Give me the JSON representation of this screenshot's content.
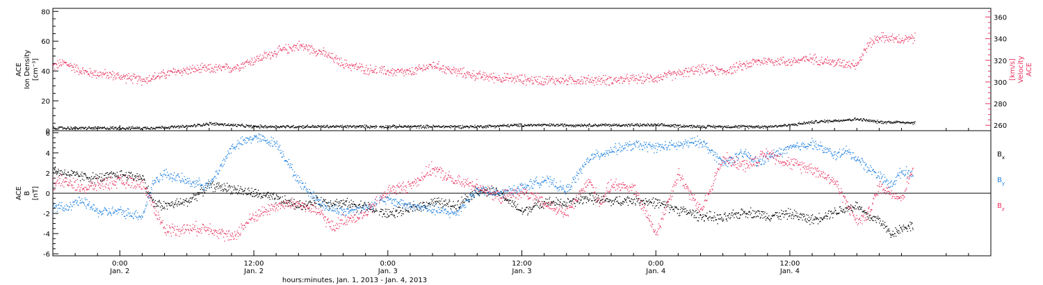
{
  "colors": {
    "density": "#000000",
    "velocity": "#e8325f",
    "bx": "#000000",
    "by": "#1a7fe0",
    "bz": "#e8325f",
    "axis": "#000000"
  },
  "chart_data": [
    {
      "type": "scatter",
      "panel": "top",
      "ylabel_left": [
        "ACE",
        "Ion Density",
        "[cm⁻³]"
      ],
      "ylabel_right": [
        "ACE",
        "Velocity",
        "[km/s]"
      ],
      "ylim": [
        0,
        82
      ],
      "yticks": [
        "0",
        "20",
        "40",
        "60",
        "80"
      ],
      "ylim_right": [
        255,
        368
      ],
      "yticks_right": [
        "260",
        "280",
        "300",
        "320",
        "340",
        "360"
      ],
      "x_unit": "hours since Jan. 1, 2013 18:00",
      "xlim": [
        0,
        84
      ],
      "series": [
        {
          "name": "Ion Density",
          "axis": "left",
          "color": "#000000",
          "x": [
            0,
            4,
            8,
            12,
            14,
            18,
            22,
            26,
            30,
            34,
            38,
            42,
            46,
            50,
            54,
            58,
            62,
            64,
            66,
            68,
            70,
            72,
            74,
            76,
            78,
            80,
            84
          ],
          "y": [
            2,
            2,
            2,
            3,
            5,
            3,
            3,
            3,
            3,
            3,
            3,
            4,
            4,
            4,
            4,
            3,
            3,
            3,
            4,
            6,
            7,
            8,
            6,
            6,
            5,
            5,
            4
          ]
        },
        {
          "name": "Velocity",
          "axis": "right",
          "color": "#e8325f",
          "x": [
            0,
            1,
            2,
            3,
            5,
            8,
            11,
            13,
            16,
            20,
            22,
            24,
            26,
            28,
            30,
            32,
            34,
            36,
            38,
            40,
            43,
            46,
            50,
            54,
            56,
            58,
            60,
            62,
            63,
            64,
            66,
            68,
            70,
            72,
            73,
            74,
            76,
            78,
            80,
            82,
            84
          ],
          "y": [
            315,
            318,
            313,
            309,
            307,
            302,
            310,
            312,
            313,
            328,
            334,
            328,
            317,
            312,
            310,
            309,
            316,
            310,
            306,
            304,
            302,
            302,
            302,
            304,
            308,
            312,
            310,
            316,
            319,
            320,
            319,
            322,
            318,
            317,
            335,
            342,
            339,
            342,
            343,
            344,
            340
          ]
        }
      ]
    },
    {
      "type": "scatter",
      "panel": "bottom",
      "ylabel": [
        "ACE",
        "B",
        "[nT]"
      ],
      "ylim": [
        -6.2,
        6.2
      ],
      "yticks": [
        "-6",
        "-4",
        "-2",
        "0",
        "2",
        "4",
        "6"
      ],
      "zero_line": true,
      "xlabel": "hours:minutes, Jan.  1, 2013 - Jan.  4, 2013",
      "xticks": [
        {
          "x": 6,
          "time": "0:00",
          "date": "Jan. 2"
        },
        {
          "x": 18,
          "time": "12:00",
          "date": "Jan. 2"
        },
        {
          "x": 30,
          "time": "0:00",
          "date": "Jan. 3"
        },
        {
          "x": 42,
          "time": "12:00",
          "date": "Jan. 3"
        },
        {
          "x": 54,
          "time": "0:00",
          "date": "Jan. 4"
        },
        {
          "x": 66,
          "time": "12:00",
          "date": "Jan. 4"
        }
      ],
      "legend": {
        "placement": "right",
        "items": [
          {
            "main": "B",
            "sub": "x",
            "color": "#000000"
          },
          {
            "main": "B",
            "sub": "y",
            "color": "#1a7fe0"
          },
          {
            "main": "B",
            "sub": "z",
            "color": "#e8325f"
          }
        ]
      },
      "xlim": [
        0,
        84
      ],
      "series": [
        {
          "name": "Bx",
          "color": "#000000",
          "x": [
            0,
            2,
            4,
            6,
            8,
            9,
            10,
            12,
            14,
            16,
            18,
            20,
            22,
            24,
            26,
            28,
            29,
            30,
            32,
            34,
            36,
            38,
            40,
            42,
            44,
            46,
            48,
            50,
            52,
            54,
            56,
            58,
            60,
            62,
            64,
            66,
            68,
            70,
            72,
            73,
            74,
            75,
            76,
            77
          ],
          "y": [
            2.3,
            1.8,
            1.5,
            1.9,
            1.6,
            -1,
            -1.2,
            -0.8,
            0.8,
            0.5,
            0,
            -0.5,
            -1.2,
            -0.8,
            -1,
            -1.2,
            -1.8,
            -2,
            -1.5,
            -0.8,
            -1.2,
            0.3,
            0,
            -1.8,
            -0.8,
            -1,
            -0.4,
            -0.8,
            -0.6,
            -0.9,
            -1.6,
            -2.2,
            -2.5,
            -1.8,
            -2.2,
            -2.0,
            -2.6,
            -1.8,
            -1.2,
            -2.3,
            -2.6,
            -4,
            -3.4,
            -3.2
          ]
        },
        {
          "name": "By",
          "color": "#1a7fe0",
          "x": [
            0,
            1,
            2,
            3,
            4,
            6,
            8,
            9,
            10,
            12,
            14,
            16,
            18,
            20,
            22,
            24,
            25,
            26,
            28,
            29,
            30,
            32,
            34,
            36,
            38,
            40,
            42,
            44,
            46,
            48,
            50,
            52,
            54,
            56,
            58,
            60,
            62,
            63,
            64,
            66,
            68,
            70,
            71,
            72,
            73,
            74,
            75,
            76,
            77
          ],
          "y": [
            -1.2,
            -1.5,
            -0.8,
            -1,
            -1.8,
            -1.8,
            -2.2,
            1.2,
            2.0,
            1.2,
            0.8,
            4.6,
            5.6,
            5.0,
            1.2,
            -1.0,
            -1.5,
            -1.8,
            -1.4,
            -0.8,
            -0.6,
            -1.2,
            -1.6,
            -2.0,
            0.4,
            0,
            0.6,
            1.4,
            0.3,
            3.5,
            4.3,
            4.8,
            4.6,
            4.8,
            5.2,
            3.0,
            4.0,
            3.0,
            3.6,
            4.5,
            5.0,
            3.8,
            4.2,
            3.5,
            2.5,
            1.8,
            0.8,
            2.2,
            2.0
          ]
        },
        {
          "name": "Bz",
          "color": "#e8325f",
          "x": [
            0,
            1,
            2,
            3,
            4,
            6,
            8,
            10,
            12,
            14,
            16,
            18,
            20,
            22,
            24,
            25,
            26,
            28,
            30,
            32,
            34,
            36,
            38,
            40,
            42,
            44,
            46,
            48,
            49,
            50,
            52,
            54,
            56,
            58,
            60,
            62,
            64,
            66,
            68,
            70,
            72,
            73,
            74,
            76,
            77
          ],
          "y": [
            1.0,
            1.2,
            0.8,
            0.5,
            0.9,
            1.2,
            1.0,
            -3.6,
            -3.5,
            -3.4,
            -4.4,
            -2.2,
            -1.2,
            -1.0,
            -2.0,
            -3.4,
            -2.6,
            -2.0,
            0.3,
            0.8,
            2.5,
            1.2,
            0.8,
            -0.4,
            0.2,
            -1.0,
            -2.0,
            1.3,
            -1.0,
            1.0,
            0.5,
            -4.0,
            2.0,
            -1.8,
            3.5,
            2.8,
            4.0,
            3.0,
            2.5,
            1.2,
            -2.8,
            -2.0,
            0.8,
            -0.5,
            2.6
          ]
        }
      ]
    }
  ]
}
